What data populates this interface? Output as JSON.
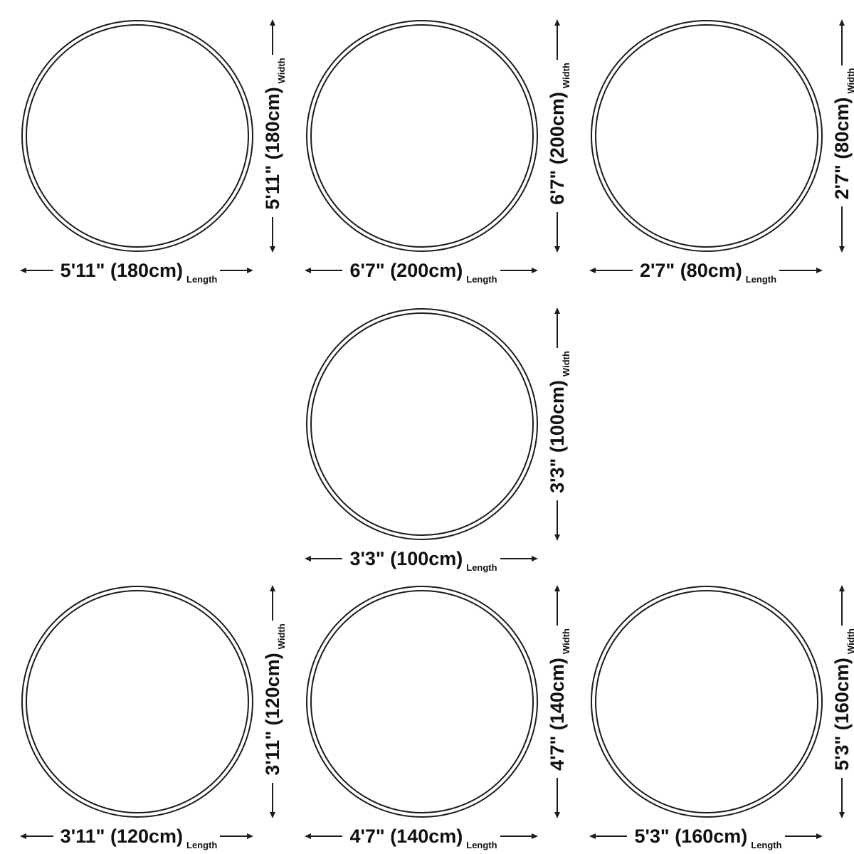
{
  "diagram": {
    "type": "rug-size-chart",
    "shape": "round",
    "background_color": "#ffffff",
    "line_color": "#1c1c1c",
    "text_color": "#111111"
  },
  "labels": {
    "width": "Width",
    "length": "Length"
  },
  "sizes": [
    {
      "label": "5'11\" (180cm)",
      "feet_inches": "5'11\"",
      "centimeters": "180cm"
    },
    {
      "label": "6'7\" (200cm)",
      "feet_inches": "6'7\"",
      "centimeters": "200cm"
    },
    {
      "label": "2'7\" (80cm)",
      "feet_inches": "2'7\"",
      "centimeters": "80cm"
    },
    {
      "label": "3'3\" (100cm)",
      "feet_inches": "3'3\"",
      "centimeters": "100cm"
    },
    {
      "label": "3'11\" (120cm)",
      "feet_inches": "3'11\"",
      "centimeters": "120cm"
    },
    {
      "label": "4'7\" (140cm)",
      "feet_inches": "4'7\"",
      "centimeters": "140cm"
    },
    {
      "label": "5'3\" (160cm)",
      "feet_inches": "5'3\"",
      "centimeters": "160cm"
    }
  ]
}
